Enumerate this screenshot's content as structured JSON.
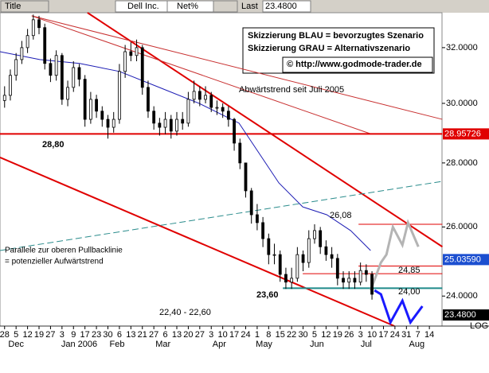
{
  "header": {
    "title": "Title",
    "symbol": "Dell Inc.",
    "field": "Net%",
    "last_label": "Last",
    "last_value": "23.4800"
  },
  "chart_data": {
    "type": "candlestick",
    "log": true,
    "grid": false,
    "xlim": [
      -0.4,
      38.1
    ],
    "ylim": [
      23.18,
      33.32
    ],
    "yticks": [
      {
        "value": 24,
        "label": "24.0000"
      },
      {
        "value": 26,
        "label": "26.0000"
      },
      {
        "value": 28,
        "label": "28.0000"
      },
      {
        "value": 30,
        "label": "30.0000"
      },
      {
        "value": 32,
        "label": "32.0000"
      }
    ],
    "xticks": [
      {
        "value": 0,
        "label": "28"
      },
      {
        "value": 1,
        "label": "5"
      },
      {
        "value": 2,
        "label": "12"
      },
      {
        "value": 3,
        "label": "19"
      },
      {
        "value": 4,
        "label": "27"
      },
      {
        "value": 5,
        "label": "3"
      },
      {
        "value": 6,
        "label": "9"
      },
      {
        "value": 7,
        "label": "17"
      },
      {
        "value": 8,
        "label": "23"
      },
      {
        "value": 9,
        "label": "30"
      },
      {
        "value": 10,
        "label": "6"
      },
      {
        "value": 11,
        "label": "13"
      },
      {
        "value": 12,
        "label": "21"
      },
      {
        "value": 13,
        "label": "27"
      },
      {
        "value": 14,
        "label": "6"
      },
      {
        "value": 15,
        "label": "13"
      },
      {
        "value": 16,
        "label": "20"
      },
      {
        "value": 17,
        "label": "27"
      },
      {
        "value": 18,
        "label": "3"
      },
      {
        "value": 19,
        "label": "10"
      },
      {
        "value": 20,
        "label": "17"
      },
      {
        "value": 21,
        "label": "24"
      },
      {
        "value": 22,
        "label": "1"
      },
      {
        "value": 23,
        "label": "8"
      },
      {
        "value": 24,
        "label": "15"
      },
      {
        "value": 25,
        "label": "22"
      },
      {
        "value": 26,
        "label": "30"
      },
      {
        "value": 27,
        "label": "5"
      },
      {
        "value": 28,
        "label": "12"
      },
      {
        "value": 29,
        "label": "19"
      },
      {
        "value": 30,
        "label": "26"
      },
      {
        "value": 31,
        "label": "3"
      },
      {
        "value": 32,
        "label": "10"
      },
      {
        "value": 33,
        "label": "17"
      },
      {
        "value": 34,
        "label": "24"
      },
      {
        "value": 35,
        "label": "31"
      },
      {
        "value": 36,
        "label": "7"
      },
      {
        "value": 37,
        "label": "14"
      }
    ],
    "months": [
      {
        "value": 1,
        "label": "Dec"
      },
      {
        "value": 6.5,
        "label": "Jan 2006"
      },
      {
        "value": 9.8,
        "label": "Feb"
      },
      {
        "value": 13.8,
        "label": "Mar"
      },
      {
        "value": 18.7,
        "label": "Apr"
      },
      {
        "value": 22.6,
        "label": "May"
      },
      {
        "value": 27.2,
        "label": "Jun"
      },
      {
        "value": 31.5,
        "label": "Jul"
      },
      {
        "value": 35.9,
        "label": "Aug"
      }
    ],
    "scale_label": "LOG",
    "x": [
      0,
      0.5,
      1,
      1.5,
      2,
      2.5,
      3,
      3.5,
      4,
      4.5,
      5,
      5.5,
      6,
      6.5,
      7,
      7.5,
      8,
      8.5,
      9,
      9.5,
      10,
      10.5,
      11,
      11.5,
      12,
      12.5,
      13,
      13.5,
      14,
      14.5,
      15,
      15.5,
      16,
      16.5,
      17,
      17.5,
      18,
      18.5,
      19,
      19.5,
      20,
      20.5,
      21,
      21.5,
      22,
      22.5,
      23,
      23.5,
      24,
      24.5,
      25,
      25.5,
      26,
      26.5,
      27,
      27.5,
      28,
      28.5,
      29,
      29.5,
      30,
      30.5,
      31,
      31.5,
      32
    ],
    "open": [
      30.1,
      30.28,
      30.99,
      31.56,
      32.0,
      32.45,
      33.05,
      32.75,
      31.42,
      30.99,
      31.71,
      30.14,
      30.56,
      31.27,
      30.85,
      29.45,
      30.14,
      29.73,
      29.45,
      29.18,
      29.45,
      31.13,
      31.85,
      31.71,
      32.0,
      30.56,
      29.73,
      29.32,
      29.18,
      29.45,
      29.05,
      29.45,
      29.32,
      30.14,
      30.42,
      30.14,
      30.28,
      29.86,
      29.86,
      29.73,
      29.45,
      28.65,
      28.0,
      27.11,
      26.37,
      26.13,
      25.65,
      25.18,
      25.18,
      24.61,
      24.39,
      24.5,
      25.18,
      24.95,
      25.65,
      25.89,
      25.41,
      25.18,
      25.07,
      24.5,
      24.39,
      24.5,
      24.39,
      24.72,
      24.61
    ],
    "high": [
      30.6,
      31.2,
      31.8,
      32.25,
      32.7,
      33.25,
      33.2,
      32.9,
      31.6,
      31.9,
      31.8,
      30.8,
      31.5,
      31.4,
      31.0,
      30.4,
      30.3,
      29.9,
      29.6,
      29.7,
      31.4,
      32.1,
      32.2,
      32.3,
      32.1,
      30.8,
      29.9,
      29.5,
      29.7,
      29.6,
      29.7,
      29.7,
      30.4,
      30.8,
      30.6,
      30.6,
      30.4,
      30.1,
      30.0,
      29.9,
      29.5,
      28.8,
      28.0,
      27.2,
      26.7,
      26.3,
      25.8,
      25.5,
      25.3,
      24.8,
      24.8,
      25.4,
      25.3,
      25.9,
      26.08,
      26.0,
      25.6,
      25.4,
      25.2,
      24.7,
      24.7,
      24.7,
      24.95,
      24.9,
      24.7
    ],
    "low": [
      29.85,
      30.1,
      30.8,
      31.4,
      31.8,
      32.3,
      32.5,
      31.2,
      30.75,
      30.8,
      29.95,
      29.9,
      30.4,
      30.6,
      29.2,
      29.3,
      29.5,
      29.2,
      28.8,
      29.0,
      29.3,
      30.9,
      31.5,
      31.5,
      30.3,
      29.5,
      29.1,
      28.9,
      28.95,
      28.8,
      28.9,
      29.1,
      29.2,
      30.0,
      29.9,
      30.0,
      29.7,
      29.6,
      29.5,
      29.2,
      28.4,
      27.8,
      26.9,
      26.1,
      25.9,
      25.4,
      24.9,
      24.9,
      24.4,
      24.2,
      24.2,
      24.4,
      24.7,
      24.8,
      25.5,
      25.2,
      25.0,
      24.8,
      24.3,
      24.2,
      24.2,
      24.2,
      24.3,
      24.4,
      23.9
    ],
    "close": [
      30.28,
      30.99,
      31.56,
      32.0,
      32.45,
      33.05,
      32.75,
      31.42,
      30.99,
      31.71,
      30.14,
      30.56,
      31.27,
      30.85,
      29.45,
      30.14,
      29.73,
      29.45,
      29.18,
      29.45,
      31.13,
      31.85,
      31.71,
      32.0,
      30.56,
      29.73,
      29.32,
      29.18,
      29.45,
      29.05,
      29.45,
      29.32,
      30.14,
      30.42,
      30.14,
      30.28,
      29.86,
      29.86,
      29.73,
      29.45,
      28.65,
      28.0,
      27.11,
      26.37,
      26.13,
      25.65,
      25.18,
      25.18,
      24.61,
      24.39,
      24.5,
      25.18,
      24.95,
      25.65,
      25.89,
      25.41,
      25.18,
      25.07,
      24.5,
      24.39,
      24.5,
      24.39,
      24.72,
      24.61,
      24.05
    ],
    "moving_average": {
      "color": "#1c1cb4",
      "x": [
        -0.4,
        3.06,
        6.53,
        10,
        13.47,
        16.94,
        20.42,
        22.5,
        23.89,
        25.97,
        28.06,
        30.14,
        31.88
      ],
      "y": [
        31.85,
        31.56,
        31.42,
        31.13,
        30.56,
        30.0,
        29.32,
        28.13,
        27.36,
        26.61,
        26.37,
        25.89,
        25.3
      ]
    },
    "lines": [
      {
        "color": "#e00000",
        "width": 2,
        "x": [
          7.22,
          38.13
        ],
        "y": [
          33.32,
          25.41
        ]
      },
      {
        "color": "#c83030",
        "width": 1,
        "x": [
          2.36,
          38.13
        ],
        "y": [
          33.2,
          29.45
        ]
      },
      {
        "color": "#c83030",
        "width": 1,
        "x": [
          2.36,
          31.88
        ],
        "y": [
          33.2,
          28.96
        ]
      },
      {
        "color": "#e00000",
        "width": 2,
        "x": [
          -0.4,
          33.96
        ],
        "y": [
          28.18,
          23.18
        ]
      },
      {
        "color": "#2a8c8c",
        "width": 1,
        "dash": true,
        "x": [
          -0.4,
          38.13
        ],
        "y": [
          25.3,
          27.41
        ]
      },
      {
        "color": "#e00000",
        "width": 2,
        "x": [
          -0.4,
          38.13
        ],
        "y": [
          28.95726,
          28.95726
        ]
      },
      {
        "color": "#e00000",
        "width": 1,
        "x": [
          30.83,
          38.13
        ],
        "y": [
          26.08,
          26.08
        ]
      },
      {
        "color": "#e00000",
        "width": 1,
        "x": [
          30.83,
          38.13
        ],
        "y": [
          24.85,
          24.85
        ]
      },
      {
        "color": "#e00000",
        "width": 1,
        "x": [
          25.97,
          38.13
        ],
        "y": [
          24.63,
          24.63
        ]
      },
      {
        "color": "#1f8a8a",
        "width": 2,
        "x": [
          24.24,
          38.13
        ],
        "y": [
          24.22,
          24.22
        ]
      },
      {
        "color": "#b4b4b4",
        "width": 3,
        "x": [
          31.88,
          32.78,
          33.26,
          33.82,
          34.65,
          35.14,
          36.04
        ],
        "y": [
          24.16,
          24.95,
          25.18,
          26.0,
          25.46,
          26.13,
          25.41
        ]
      },
      {
        "color": "#1a1aff",
        "width": 3,
        "x": [
          32.22,
          32.78,
          33.61,
          34.65,
          35.35,
          36.39
        ],
        "y": [
          24.16,
          24.05,
          23.28,
          23.87,
          23.28,
          23.72
        ]
      }
    ],
    "price_markers": [
      {
        "value": 28.95726,
        "label": "28.95726",
        "color": "#e00000"
      },
      {
        "value": 25.0359,
        "label": "25.03590",
        "color": "#1c4fd0"
      },
      {
        "value": 23.48,
        "label": "23.4800",
        "color": "#000000"
      }
    ],
    "legend_box": [
      "Skizzierung BLAU = bevorzugtes Szenario",
      "Skizzierung GRAU = Alternativszenario",
      "© http://www.godmode-trader.de"
    ],
    "annotations": [
      "Abwärtstrend seit Juli 2005",
      "28,80",
      "26,08",
      "24,85",
      "24,00",
      "23,60",
      "22,40 - 22,60",
      "Parallele zur oberen Pullbacklinie",
      "= potenzieller Aufwärtstrend"
    ]
  }
}
